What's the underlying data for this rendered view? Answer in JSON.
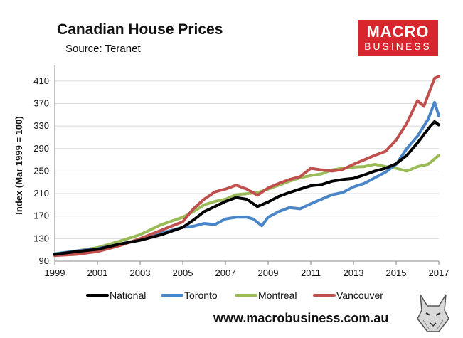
{
  "header": {
    "title": "Canadian House Prices",
    "subtitle": "Source: Teranet"
  },
  "logo": {
    "line1": "MACRO",
    "line2": "BUSINESS"
  },
  "footer": {
    "website": "www.macrobusiness.com.au"
  },
  "colors": {
    "National": "#000000",
    "Toronto": "#4a86c7",
    "Montreal": "#9bbb59",
    "Vancouver": "#c0504d",
    "brand": "#d7262d"
  },
  "chart_data": {
    "type": "line",
    "title": "Canadian House Prices",
    "ylabel": "Index (Mar 1999 = 100)",
    "xlabel": "",
    "xlim": [
      1999,
      2017
    ],
    "ylim": [
      90,
      430
    ],
    "yticks": [
      90,
      130,
      170,
      210,
      250,
      290,
      330,
      370,
      410
    ],
    "xticks": [
      1999,
      2001,
      2003,
      2005,
      2007,
      2009,
      2011,
      2013,
      2015,
      2017
    ],
    "legend_position": "bottom",
    "series": [
      {
        "name": "National",
        "x": [
          1999,
          2000,
          2001,
          2002,
          2003,
          2004,
          2005,
          2005.5,
          2006,
          2006.5,
          2007,
          2007.5,
          2008,
          2008.5,
          2009,
          2009.5,
          2010,
          2010.5,
          2011,
          2011.5,
          2012,
          2012.5,
          2013,
          2013.5,
          2014,
          2014.5,
          2015,
          2015.5,
          2016,
          2016.5,
          2016.8,
          2017
        ],
        "values": [
          102,
          107,
          111,
          120,
          127,
          137,
          150,
          163,
          178,
          187,
          196,
          203,
          200,
          187,
          195,
          205,
          212,
          218,
          224,
          226,
          232,
          235,
          237,
          243,
          250,
          255,
          263,
          278,
          300,
          325,
          338,
          332
        ]
      },
      {
        "name": "Toronto",
        "x": [
          1999,
          2000,
          2001,
          2002,
          2003,
          2004,
          2005,
          2005.5,
          2006,
          2006.5,
          2007,
          2007.5,
          2008,
          2008.3,
          2008.7,
          2009,
          2009.5,
          2010,
          2010.5,
          2011,
          2011.5,
          2012,
          2012.5,
          2013,
          2013.5,
          2014,
          2014.5,
          2015,
          2015.5,
          2016,
          2016.5,
          2016.8,
          2017
        ],
        "values": [
          103,
          108,
          112,
          120,
          128,
          140,
          150,
          152,
          157,
          155,
          165,
          168,
          168,
          165,
          153,
          168,
          178,
          185,
          183,
          192,
          200,
          208,
          212,
          222,
          228,
          238,
          248,
          262,
          290,
          312,
          342,
          372,
          348
        ]
      },
      {
        "name": "Montreal",
        "x": [
          1999,
          2000,
          2001,
          2002,
          2003,
          2004,
          2005,
          2005.5,
          2006,
          2006.5,
          2007,
          2007.5,
          2008,
          2008.5,
          2009,
          2009.5,
          2010,
          2010.5,
          2011,
          2011.5,
          2012,
          2012.5,
          2013,
          2013.5,
          2014,
          2014.5,
          2015,
          2015.5,
          2016,
          2016.5,
          2017
        ],
        "values": [
          103,
          108,
          114,
          125,
          137,
          155,
          168,
          178,
          190,
          196,
          200,
          208,
          210,
          212,
          218,
          225,
          232,
          238,
          242,
          245,
          252,
          255,
          257,
          258,
          262,
          258,
          255,
          250,
          258,
          262,
          278
        ]
      },
      {
        "name": "Vancouver",
        "x": [
          1999,
          2000,
          2001,
          2002,
          2003,
          2004,
          2005,
          2005.5,
          2006,
          2006.5,
          2007,
          2007.5,
          2008,
          2008.5,
          2009,
          2009.5,
          2010,
          2010.5,
          2011,
          2011.5,
          2012,
          2012.5,
          2013,
          2013.5,
          2014,
          2014.5,
          2015,
          2015.5,
          2016,
          2016.3,
          2016.5,
          2016.8,
          2017
        ],
        "values": [
          100,
          102,
          107,
          117,
          130,
          145,
          160,
          183,
          200,
          213,
          218,
          225,
          218,
          207,
          220,
          228,
          235,
          240,
          255,
          252,
          250,
          253,
          262,
          270,
          278,
          285,
          305,
          335,
          375,
          365,
          385,
          415,
          418
        ]
      }
    ]
  }
}
